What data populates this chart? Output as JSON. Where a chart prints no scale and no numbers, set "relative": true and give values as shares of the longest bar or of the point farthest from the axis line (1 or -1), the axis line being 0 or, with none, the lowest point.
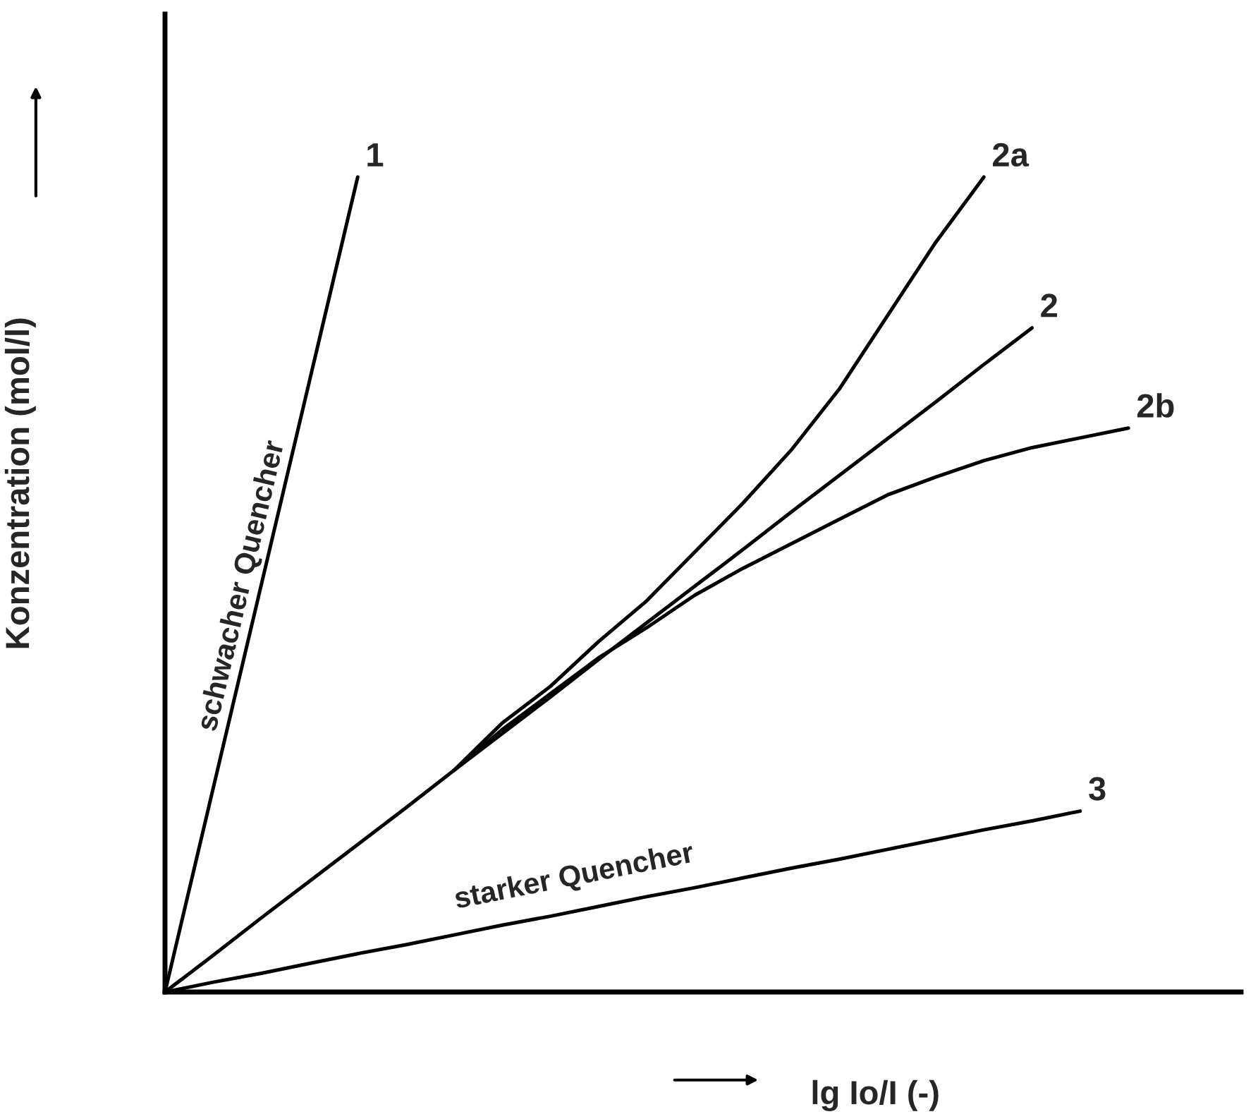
{
  "chart_data": {
    "type": "line",
    "relative": true,
    "xlabel": "lg Io/I (-)",
    "ylabel": "Konzentration (mol/l)",
    "categories": [
      null,
      null,
      null,
      null,
      null,
      null,
      null,
      null,
      null,
      null,
      null,
      null,
      null,
      null,
      null,
      null,
      null,
      null,
      null,
      null,
      null
    ],
    "series": [
      {
        "name": "1",
        "color": "#000000",
        "values": [
          0,
          0.25,
          0.5,
          0.75,
          1,
          null,
          null,
          null,
          null,
          null,
          null,
          null,
          null,
          null,
          null,
          null,
          null,
          null,
          null,
          null,
          null
        ]
      },
      {
        "name": "2a",
        "color": "#000000",
        "values": [
          null,
          null,
          null,
          null,
          null,
          null,
          0.272,
          0.33,
          0.375,
          0.43,
          0.48,
          0.54,
          0.6,
          0.665,
          0.74,
          0.83,
          0.92,
          1.0,
          null,
          null,
          null
        ]
      },
      {
        "name": "2",
        "color": "#000000",
        "values": [
          0,
          0.045,
          0.091,
          0.136,
          0.181,
          0.226,
          0.272,
          0.317,
          0.362,
          0.408,
          0.453,
          0.498,
          0.543,
          0.589,
          0.634,
          0.679,
          0.724,
          0.77,
          0.815,
          null,
          null
        ]
      },
      {
        "name": "2b",
        "color": "#000000",
        "values": [
          null,
          null,
          null,
          null,
          null,
          null,
          0.272,
          0.322,
          0.366,
          0.41,
          0.447,
          0.487,
          0.52,
          0.55,
          0.58,
          0.61,
          0.632,
          0.652,
          0.668,
          0.68,
          0.692
        ]
      },
      {
        "name": "3",
        "color": "#000000",
        "values": [
          0,
          0.012,
          0.023,
          0.035,
          0.047,
          0.058,
          0.07,
          0.082,
          0.093,
          0.105,
          0.117,
          0.128,
          0.14,
          0.152,
          0.163,
          0.175,
          0.187,
          0.199,
          0.21,
          0.222,
          null
        ]
      }
    ],
    "annotations": [
      "schwacher Quencher",
      "starker Quencher"
    ],
    "grid": false,
    "legend": false,
    "marker": "none",
    "line_style": "solid"
  }
}
